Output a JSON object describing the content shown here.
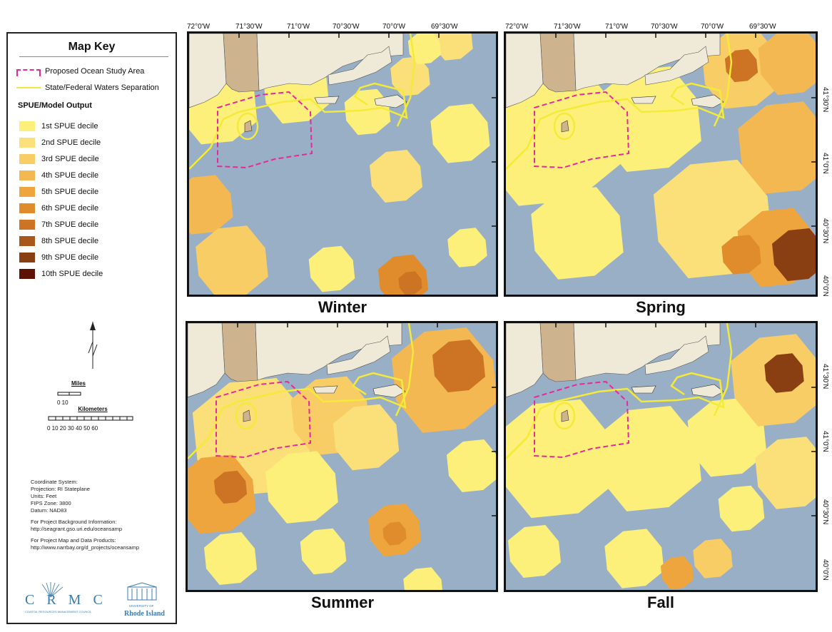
{
  "legend": {
    "title": "Map Key",
    "study_area": "Proposed Ocean Study Area",
    "waters_sep": "State/Federal Waters Separation",
    "subheading": "SPUE/Model Output",
    "deciles": [
      {
        "label": "1st SPUE decile",
        "color": "#fdf07a"
      },
      {
        "label": "2nd SPUE decile",
        "color": "#fbe07a"
      },
      {
        "label": "3rd SPUE decile",
        "color": "#f8cd66"
      },
      {
        "label": "4th SPUE decile",
        "color": "#f3b851"
      },
      {
        "label": "5th SPUE decile",
        "color": "#eea53e"
      },
      {
        "label": "6th SPUE decile",
        "color": "#e08c2c"
      },
      {
        "label": "7th SPUE decile",
        "color": "#cc7423"
      },
      {
        "label": "8th SPUE decile",
        "color": "#a9581c"
      },
      {
        "label": "9th SPUE decile",
        "color": "#8a3f12"
      },
      {
        "label": "10th SPUE decile",
        "color": "#5e1206"
      }
    ],
    "scale": {
      "miles": "Miles",
      "mile_ticks": "0     10",
      "km": "Kilometers",
      "km_ticks": "0  10 20 30 40 50 60"
    },
    "coordinate_system": [
      "Coordinate System:",
      "Projection:  RI Stateplane",
      "Units:  Feet",
      "FIPS Zone:  3800",
      "Datum:  NAD83"
    ],
    "background_info": [
      "For Project Background Information:",
      "http://seagrant.gso.uri.edu/oceansamp"
    ],
    "data_products": [
      "For Project Map and Data Products:",
      "http://www.narrbay.org/d_projects/oceansamp"
    ],
    "logo_crmc": "C R M C",
    "logo_uri": "UNIVERSITY OF Rhode Island"
  },
  "maps": {
    "top_left": "Winter",
    "top_right": "Spring",
    "bottom_left": "Summer",
    "bottom_right": "Fall"
  },
  "longitude_labels": [
    "72°0'W",
    "71°30'W",
    "71°0'W",
    "70°30'W",
    "70°0'W",
    "69°30'W"
  ],
  "latitude_labels": [
    "41°30'N",
    "41°0'N",
    "40°30'N",
    "40°0'N"
  ],
  "colors": {
    "water": "#8fa8c2",
    "land_ri": "#cdb48e",
    "land_other": "#efe9d8",
    "study_area": "#e8299c",
    "waters_line": "#f3ea3a"
  }
}
